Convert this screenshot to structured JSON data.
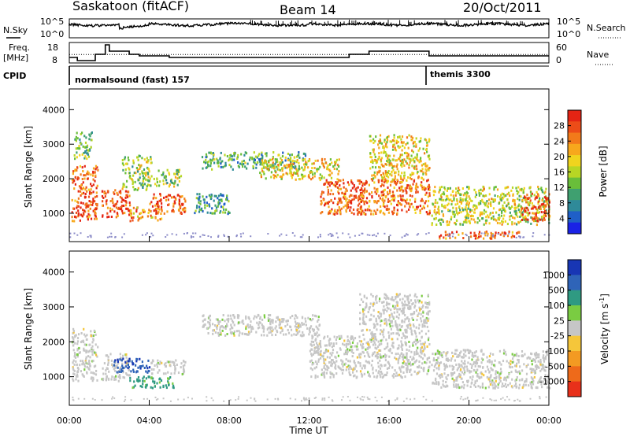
{
  "header": {
    "station": "Saskatoon (fitACF)",
    "beam": "Beam 14",
    "date": "20/Oct/2011"
  },
  "status_panel": {
    "nsky_label": "N.Sky",
    "nsearch_label": "N.Search",
    "freq_label_1": "Freq.",
    "freq_label_2": "[MHz]",
    "nave_label": "Nave",
    "cpid_label": "CPID",
    "noise_ticks_left": [
      "10^5",
      "10^0"
    ],
    "noise_ticks_right": [
      "10^5",
      "10^0"
    ],
    "freq_ticks": [
      "18",
      "8"
    ],
    "nave_ticks": [
      "60",
      "0"
    ],
    "cpid_segments": [
      {
        "label": "normalsound (fast) 157",
        "start_hour": 0,
        "end_hour": 18
      },
      {
        "label": "themis 3300",
        "start_hour": 18,
        "end_hour": 24
      }
    ],
    "freq_mhz": [
      [
        0,
        10
      ],
      [
        0.4,
        10
      ],
      [
        0.4,
        8
      ],
      [
        1.3,
        8
      ],
      [
        1.3,
        12
      ],
      [
        1.8,
        12
      ],
      [
        1.8,
        18
      ],
      [
        2.0,
        18
      ],
      [
        2.0,
        14
      ],
      [
        3.0,
        14
      ],
      [
        3.0,
        12
      ],
      [
        3.5,
        12
      ],
      [
        3.5,
        11
      ],
      [
        5.0,
        11
      ],
      [
        5.0,
        10
      ],
      [
        14.0,
        10
      ],
      [
        14.0,
        12
      ],
      [
        15.0,
        12
      ],
      [
        15.0,
        14
      ],
      [
        18.0,
        14
      ],
      [
        18.0,
        11
      ],
      [
        24,
        11
      ]
    ],
    "nave_dotted": 27
  },
  "power_panel": {
    "ylabel": "Slant Range [km]",
    "colorbar_label": "Power [dB]",
    "yticks": [
      "1000",
      "2000",
      "3000",
      "4000"
    ],
    "colorbar_ticks": [
      "4",
      "8",
      "12",
      "16",
      "20",
      "24",
      "28"
    ],
    "colorbar_colors": [
      "#1a22e6",
      "#1f5fc8",
      "#2f8a99",
      "#3fa070",
      "#69be3a",
      "#b8d624",
      "#f0d41e",
      "#f7a81c",
      "#f27a1a",
      "#ec4c18",
      "#e42414"
    ]
  },
  "velocity_panel": {
    "ylabel": "Slant Range [km]",
    "colorbar_label": "Velocity [m s^-1]",
    "yticks": [
      "1000",
      "2000",
      "3000",
      "4000"
    ],
    "colorbar_ticks": [
      "1000",
      "500",
      "100",
      "25",
      "-25",
      "-100",
      "-500",
      "-1000"
    ],
    "colorbar_colors": [
      "#1836b4",
      "#2f64b8",
      "#2f9a82",
      "#7acc42",
      "#c6c6c6",
      "#f5c63a",
      "#f39a22",
      "#ee6a1a",
      "#e8301a"
    ]
  },
  "x_axis": {
    "label": "Time UT",
    "ticks": [
      "00:00",
      "04:00",
      "08:00",
      "12:00",
      "16:00",
      "20:00",
      "00:00"
    ]
  },
  "chart_data": [
    {
      "type": "heatmap",
      "title": "Saskatoon (fitACF)",
      "xlabel": "Time UT",
      "ylabel": "Slant Range [km]",
      "zlabel": "Power [dB]",
      "xlim": [
        0,
        24
      ],
      "ylim": [
        180,
        4600
      ],
      "clim": [
        0,
        30
      ],
      "blobs": [
        {
          "t": [
            0.1,
            1.4
          ],
          "r": [
            800,
            2400
          ],
          "z": 26
        },
        {
          "t": [
            0.2,
            1.1
          ],
          "r": [
            2600,
            3400
          ],
          "z": 12
        },
        {
          "t": [
            1.6,
            3.0
          ],
          "r": [
            900,
            1700
          ],
          "z": 28
        },
        {
          "t": [
            2.6,
            4.1
          ],
          "r": [
            1700,
            2700
          ],
          "z": 14
        },
        {
          "t": [
            3.0,
            4.6
          ],
          "r": [
            800,
            1200
          ],
          "z": 22
        },
        {
          "t": [
            4.0,
            5.8
          ],
          "r": [
            1000,
            1600
          ],
          "z": 26
        },
        {
          "t": [
            4.2,
            5.6
          ],
          "r": [
            1800,
            2300
          ],
          "z": 14
        },
        {
          "t": [
            6.2,
            8.0
          ],
          "r": [
            1000,
            1600
          ],
          "z": 8
        },
        {
          "t": [
            6.6,
            11.8
          ],
          "r": [
            2300,
            2800
          ],
          "z": 10
        },
        {
          "t": [
            9.5,
            13.5
          ],
          "r": [
            2000,
            2600
          ],
          "z": 18
        },
        {
          "t": [
            12.5,
            14.8
          ],
          "r": [
            1000,
            2000
          ],
          "z": 26
        },
        {
          "t": [
            14.4,
            18.0
          ],
          "r": [
            1000,
            2000
          ],
          "z": 24
        },
        {
          "t": [
            15.0,
            18.0
          ],
          "r": [
            2000,
            3300
          ],
          "z": 18
        },
        {
          "t": [
            18.1,
            24.0
          ],
          "r": [
            700,
            1800
          ],
          "z": 16
        },
        {
          "t": [
            18.4,
            22.5
          ],
          "r": [
            300,
            500
          ],
          "z": 26
        },
        {
          "t": [
            22.6,
            24.0
          ],
          "r": [
            800,
            1600
          ],
          "z": 26
        }
      ]
    },
    {
      "type": "heatmap",
      "xlabel": "Time UT",
      "ylabel": "Slant Range [km]",
      "zlabel": "Velocity [m s^-1]",
      "xlim": [
        0,
        24
      ],
      "ylim": [
        180,
        4600
      ],
      "clim": [
        -1000,
        1000
      ],
      "blobs": [
        {
          "t": [
            0.1,
            1.4
          ],
          "r": [
            900,
            2400
          ],
          "z": 0
        },
        {
          "t": [
            1.6,
            3.0
          ],
          "r": [
            900,
            1700
          ],
          "z": 0
        },
        {
          "t": [
            2.2,
            4.0
          ],
          "r": [
            1150,
            1550
          ],
          "z": 900
        },
        {
          "t": [
            3.0,
            5.2
          ],
          "r": [
            700,
            1050
          ],
          "z": 200
        },
        {
          "t": [
            4.0,
            5.8
          ],
          "r": [
            1100,
            1500
          ],
          "z": 0
        },
        {
          "t": [
            6.6,
            12.5
          ],
          "r": [
            2200,
            2800
          ],
          "z": 0
        },
        {
          "t": [
            12.0,
            18.0
          ],
          "r": [
            1000,
            2200
          ],
          "z": 0
        },
        {
          "t": [
            14.5,
            18.0
          ],
          "r": [
            2200,
            3400
          ],
          "z": 0
        },
        {
          "t": [
            18.1,
            24.0
          ],
          "r": [
            700,
            1800
          ],
          "z": 0
        }
      ]
    }
  ]
}
